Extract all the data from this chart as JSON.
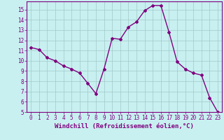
{
  "x": [
    0,
    1,
    2,
    3,
    4,
    5,
    6,
    7,
    8,
    9,
    10,
    11,
    12,
    13,
    14,
    15,
    16,
    17,
    18,
    19,
    20,
    21,
    22,
    23
  ],
  "y": [
    11.3,
    11.1,
    10.3,
    10.0,
    9.5,
    9.2,
    8.8,
    7.8,
    6.8,
    9.2,
    12.2,
    12.1,
    13.3,
    13.8,
    14.9,
    15.4,
    15.4,
    12.8,
    9.9,
    9.2,
    8.8,
    8.6,
    6.4,
    5.0
  ],
  "line_color": "#800080",
  "marker": "D",
  "marker_size": 2,
  "bg_color": "#c8f0f0",
  "grid_color": "#a0c8c8",
  "xlabel": "Windchill (Refroidissement éolien,°C)",
  "ylabel": "",
  "title": "",
  "xlim": [
    -0.5,
    23.5
  ],
  "ylim": [
    5,
    15.8
  ],
  "xticks": [
    0,
    1,
    2,
    3,
    4,
    5,
    6,
    7,
    8,
    9,
    10,
    11,
    12,
    13,
    14,
    15,
    16,
    17,
    18,
    19,
    20,
    21,
    22,
    23
  ],
  "yticks": [
    5,
    6,
    7,
    8,
    9,
    10,
    11,
    12,
    13,
    14,
    15
  ],
  "tick_label_fontsize": 5.5,
  "xlabel_fontsize": 6.5,
  "axis_color": "#800080",
  "spine_color": "#800080",
  "linewidth": 1.0
}
